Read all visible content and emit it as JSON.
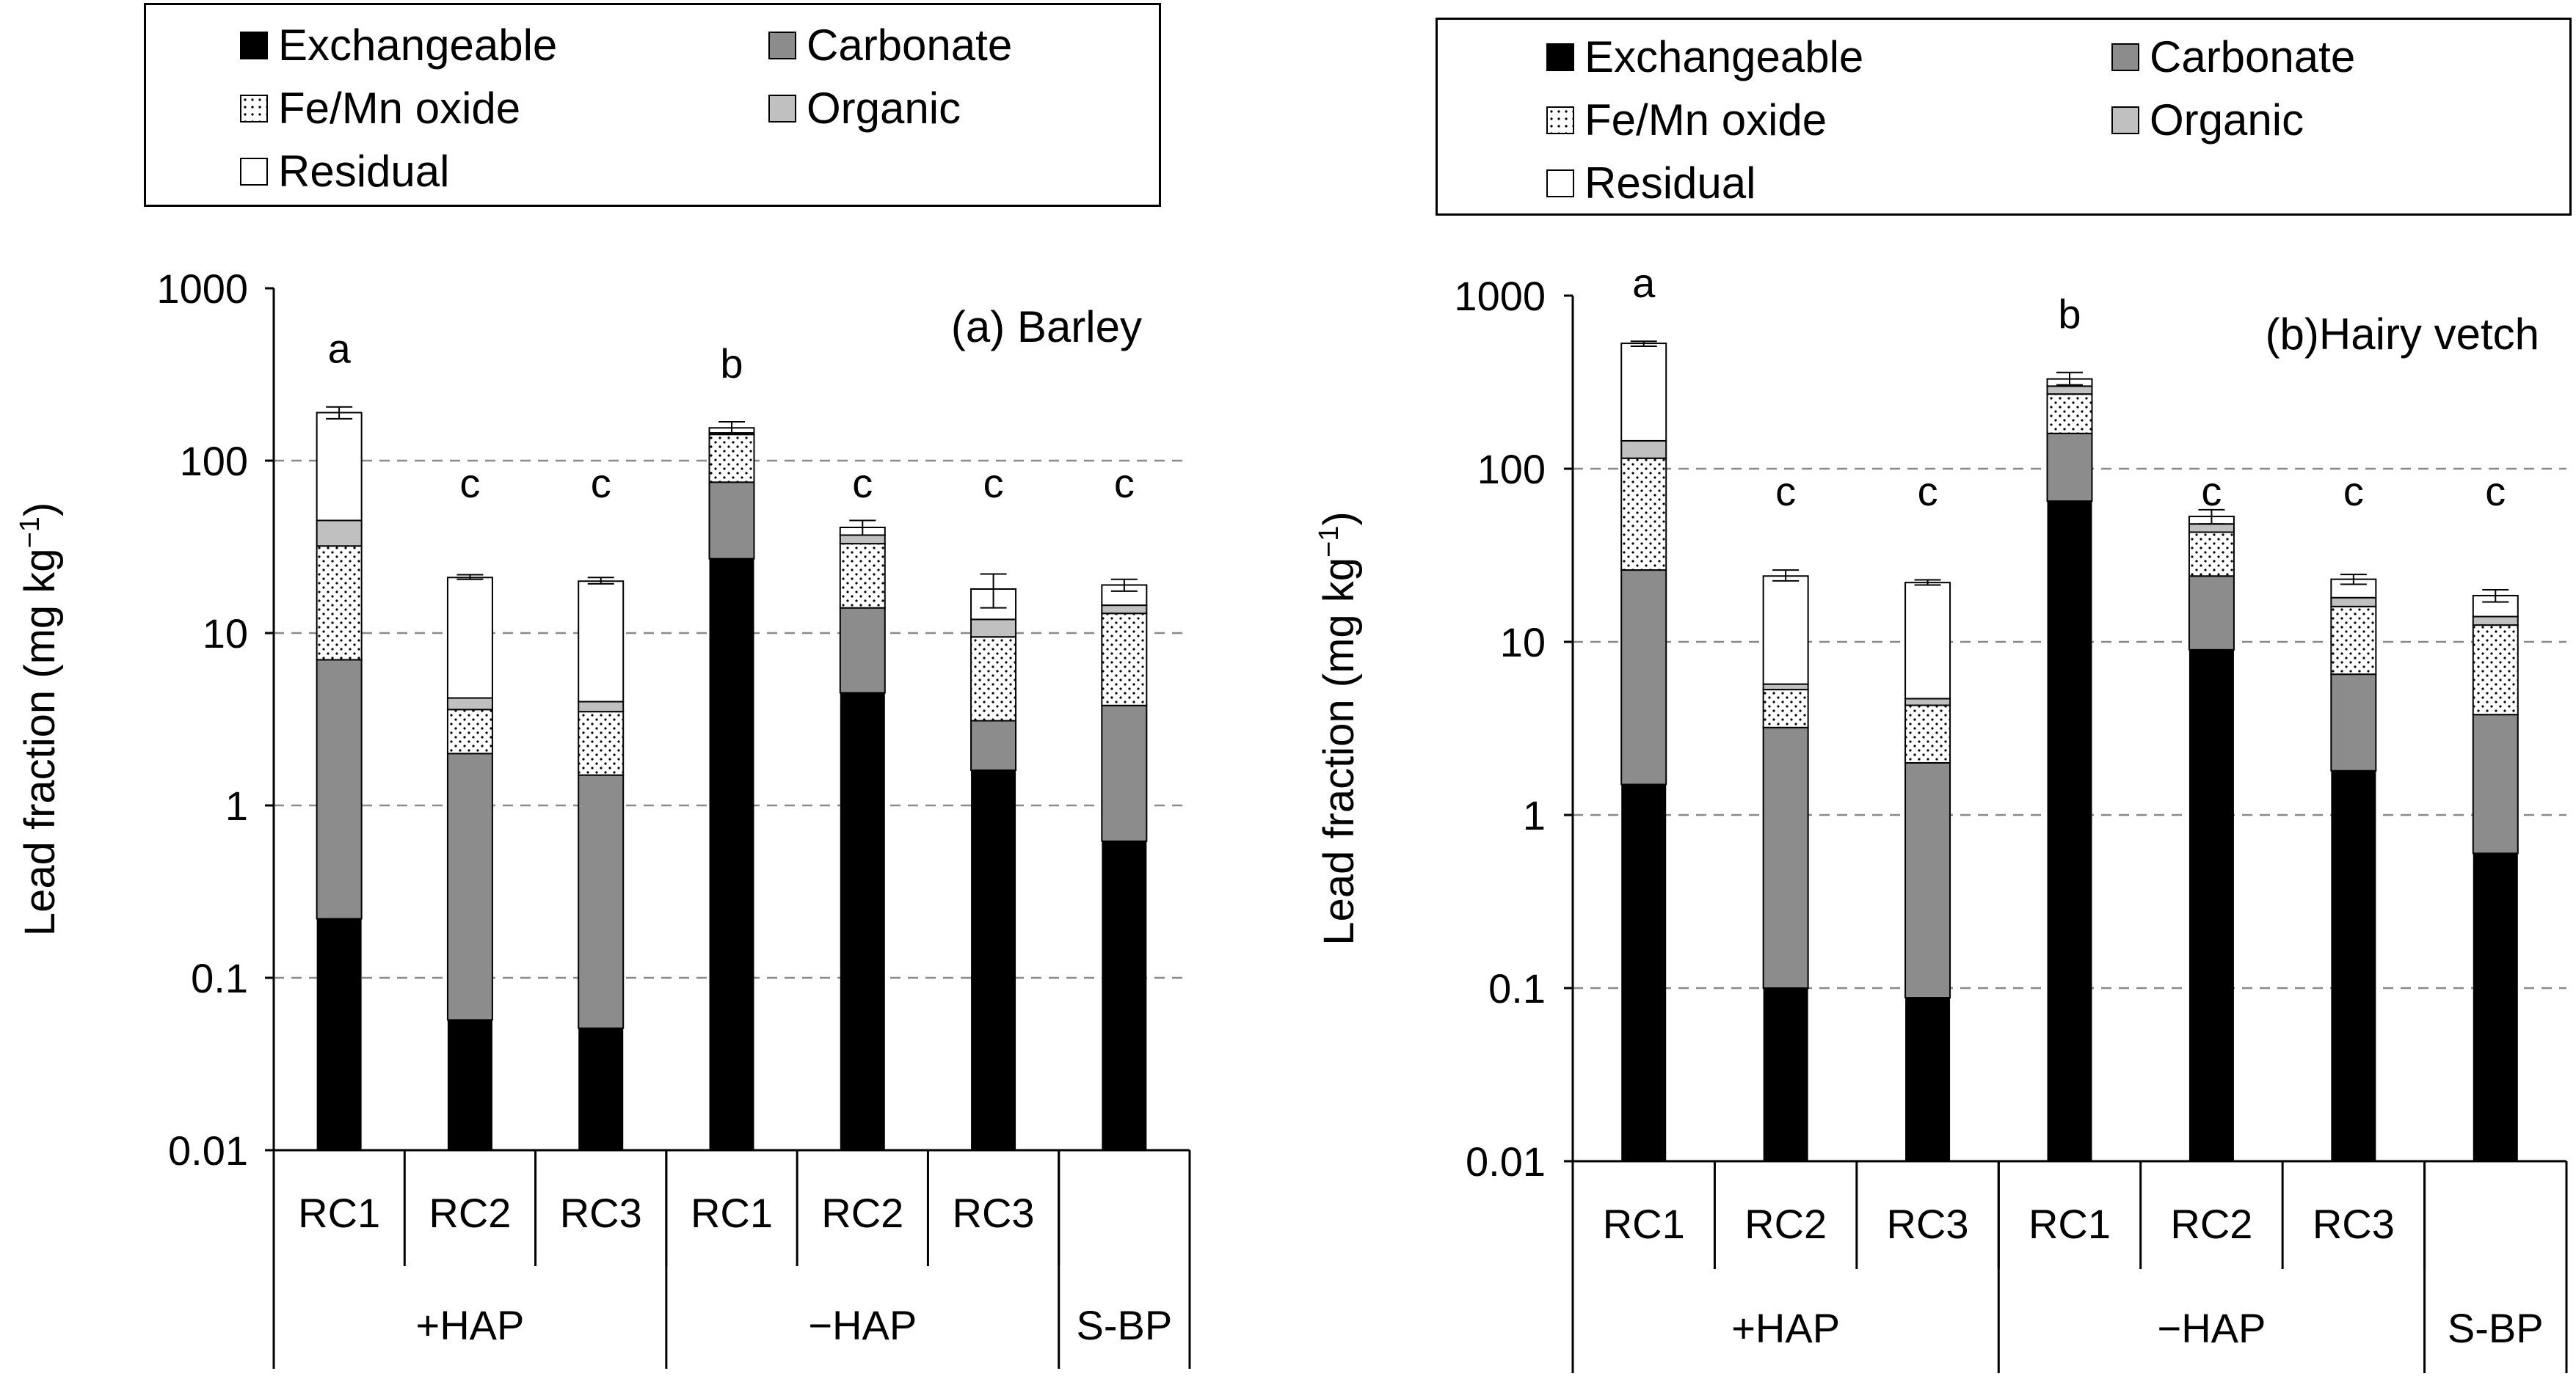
{
  "legend": {
    "items": [
      {
        "key": "exchangeable",
        "label": "Exchangeable",
        "color": "#000000"
      },
      {
        "key": "carbonate",
        "label": "Carbonate",
        "color": "#8c8c8c"
      },
      {
        "key": "femn",
        "label": "Fe/Mn oxide",
        "color": "#ffffff"
      },
      {
        "key": "organic",
        "label": "Organic",
        "color": "#c0c0c0"
      },
      {
        "key": "residual",
        "label": "Residual",
        "color": "#ffffff"
      }
    ]
  },
  "chart_data": [
    {
      "type": "bar",
      "stacked": true,
      "scale": "log",
      "title": "(a) Barley",
      "ylabel": "Lead fraction (mg kg",
      "ylabel_sup": "−1",
      "ylabel_close": ")",
      "ylim": [
        0.01,
        1000
      ],
      "yticks": [
        {
          "value": 0.01,
          "label": "0.01"
        },
        {
          "value": 0.1,
          "label": "0.1"
        },
        {
          "value": 1,
          "label": "1"
        },
        {
          "value": 10,
          "label": "10"
        },
        {
          "value": 100,
          "label": "100"
        },
        {
          "value": 1000,
          "label": "1000"
        }
      ],
      "grid": "dashed horizontal",
      "categories": [
        "RC1",
        "RC2",
        "RC3",
        "RC1",
        "RC2",
        "RC3",
        ""
      ],
      "groups": [
        {
          "label": "+HAP",
          "count": 3
        },
        {
          "label": "−HAP",
          "count": 3
        },
        {
          "label": "S-BP",
          "count": 1
        }
      ],
      "bars": [
        {
          "cumulative": {
            "exchangeable": 0.22,
            "carbonate": 7.0,
            "femn": 32,
            "organic": 45,
            "residual": 190
          },
          "error": [
            175,
            205
          ],
          "letter": "a"
        },
        {
          "cumulative": {
            "exchangeable": 0.057,
            "carbonate": 2.0,
            "femn": 3.6,
            "organic": 4.2,
            "residual": 21
          },
          "error": [
            20.5,
            21.8
          ],
          "letter": "c"
        },
        {
          "cumulative": {
            "exchangeable": 0.051,
            "carbonate": 1.5,
            "femn": 3.5,
            "organic": 4.0,
            "residual": 20
          },
          "error": [
            19.3,
            21
          ],
          "letter": "c"
        },
        {
          "cumulative": {
            "exchangeable": 27,
            "carbonate": 75,
            "femn": 142,
            "organic": 145,
            "residual": 155
          },
          "error": [
            143,
            168
          ],
          "letter": "b"
        },
        {
          "cumulative": {
            "exchangeable": 4.5,
            "carbonate": 14,
            "femn": 33,
            "organic": 37,
            "residual": 41
          },
          "error": [
            37,
            45
          ],
          "letter": "c"
        },
        {
          "cumulative": {
            "exchangeable": 1.6,
            "carbonate": 3.1,
            "femn": 9.5,
            "organic": 12,
            "residual": 18
          },
          "error": [
            14,
            22
          ],
          "letter": "c"
        },
        {
          "cumulative": {
            "exchangeable": 0.62,
            "carbonate": 3.8,
            "femn": 13,
            "organic": 14.5,
            "residual": 19
          },
          "error": [
            17.5,
            20.5
          ],
          "letter": "c"
        }
      ]
    },
    {
      "type": "bar",
      "stacked": true,
      "scale": "log",
      "title": "(b)Hairy vetch",
      "ylabel": "Lead fraction (mg kg",
      "ylabel_sup": "−1",
      "ylabel_close": ")",
      "ylim": [
        0.01,
        1000
      ],
      "yticks": [
        {
          "value": 0.01,
          "label": "0.01"
        },
        {
          "value": 0.1,
          "label": "0.1"
        },
        {
          "value": 1,
          "label": "1"
        },
        {
          "value": 10,
          "label": "10"
        },
        {
          "value": 100,
          "label": "100"
        },
        {
          "value": 1000,
          "label": "1000"
        }
      ],
      "grid": "dashed horizontal",
      "categories": [
        "RC1",
        "RC2",
        "RC3",
        "RC1",
        "RC2",
        "RC3",
        ""
      ],
      "groups": [
        {
          "label": "+HAP",
          "count": 3
        },
        {
          "label": "−HAP",
          "count": 3
        },
        {
          "label": "S-BP",
          "count": 1
        }
      ],
      "bars": [
        {
          "cumulative": {
            "exchangeable": 1.5,
            "carbonate": 26,
            "femn": 115,
            "organic": 145,
            "residual": 530
          },
          "error": [
            510,
            545
          ],
          "letter": "a"
        },
        {
          "cumulative": {
            "exchangeable": 0.1,
            "carbonate": 3.2,
            "femn": 5.3,
            "organic": 5.7,
            "residual": 24
          },
          "error": [
            22.5,
            26
          ],
          "letter": "c"
        },
        {
          "cumulative": {
            "exchangeable": 0.088,
            "carbonate": 2.0,
            "femn": 4.3,
            "organic": 4.7,
            "residual": 22
          },
          "error": [
            21.3,
            22.8
          ],
          "letter": "c"
        },
        {
          "cumulative": {
            "exchangeable": 65,
            "carbonate": 160,
            "femn": 270,
            "organic": 300,
            "residual": 330
          },
          "error": [
            305,
            360
          ],
          "letter": "b"
        },
        {
          "cumulative": {
            "exchangeable": 9.0,
            "carbonate": 24,
            "femn": 43,
            "organic": 48,
            "residual": 53
          },
          "error": [
            48,
            58
          ],
          "letter": "c"
        },
        {
          "cumulative": {
            "exchangeable": 1.8,
            "carbonate": 6.5,
            "femn": 16,
            "organic": 18,
            "residual": 23
          },
          "error": [
            21.5,
            24.5
          ],
          "letter": "c"
        },
        {
          "cumulative": {
            "exchangeable": 0.6,
            "carbonate": 3.8,
            "femn": 12.5,
            "organic": 14,
            "residual": 18.5
          },
          "error": [
            17,
            20
          ],
          "letter": "c"
        }
      ]
    }
  ]
}
